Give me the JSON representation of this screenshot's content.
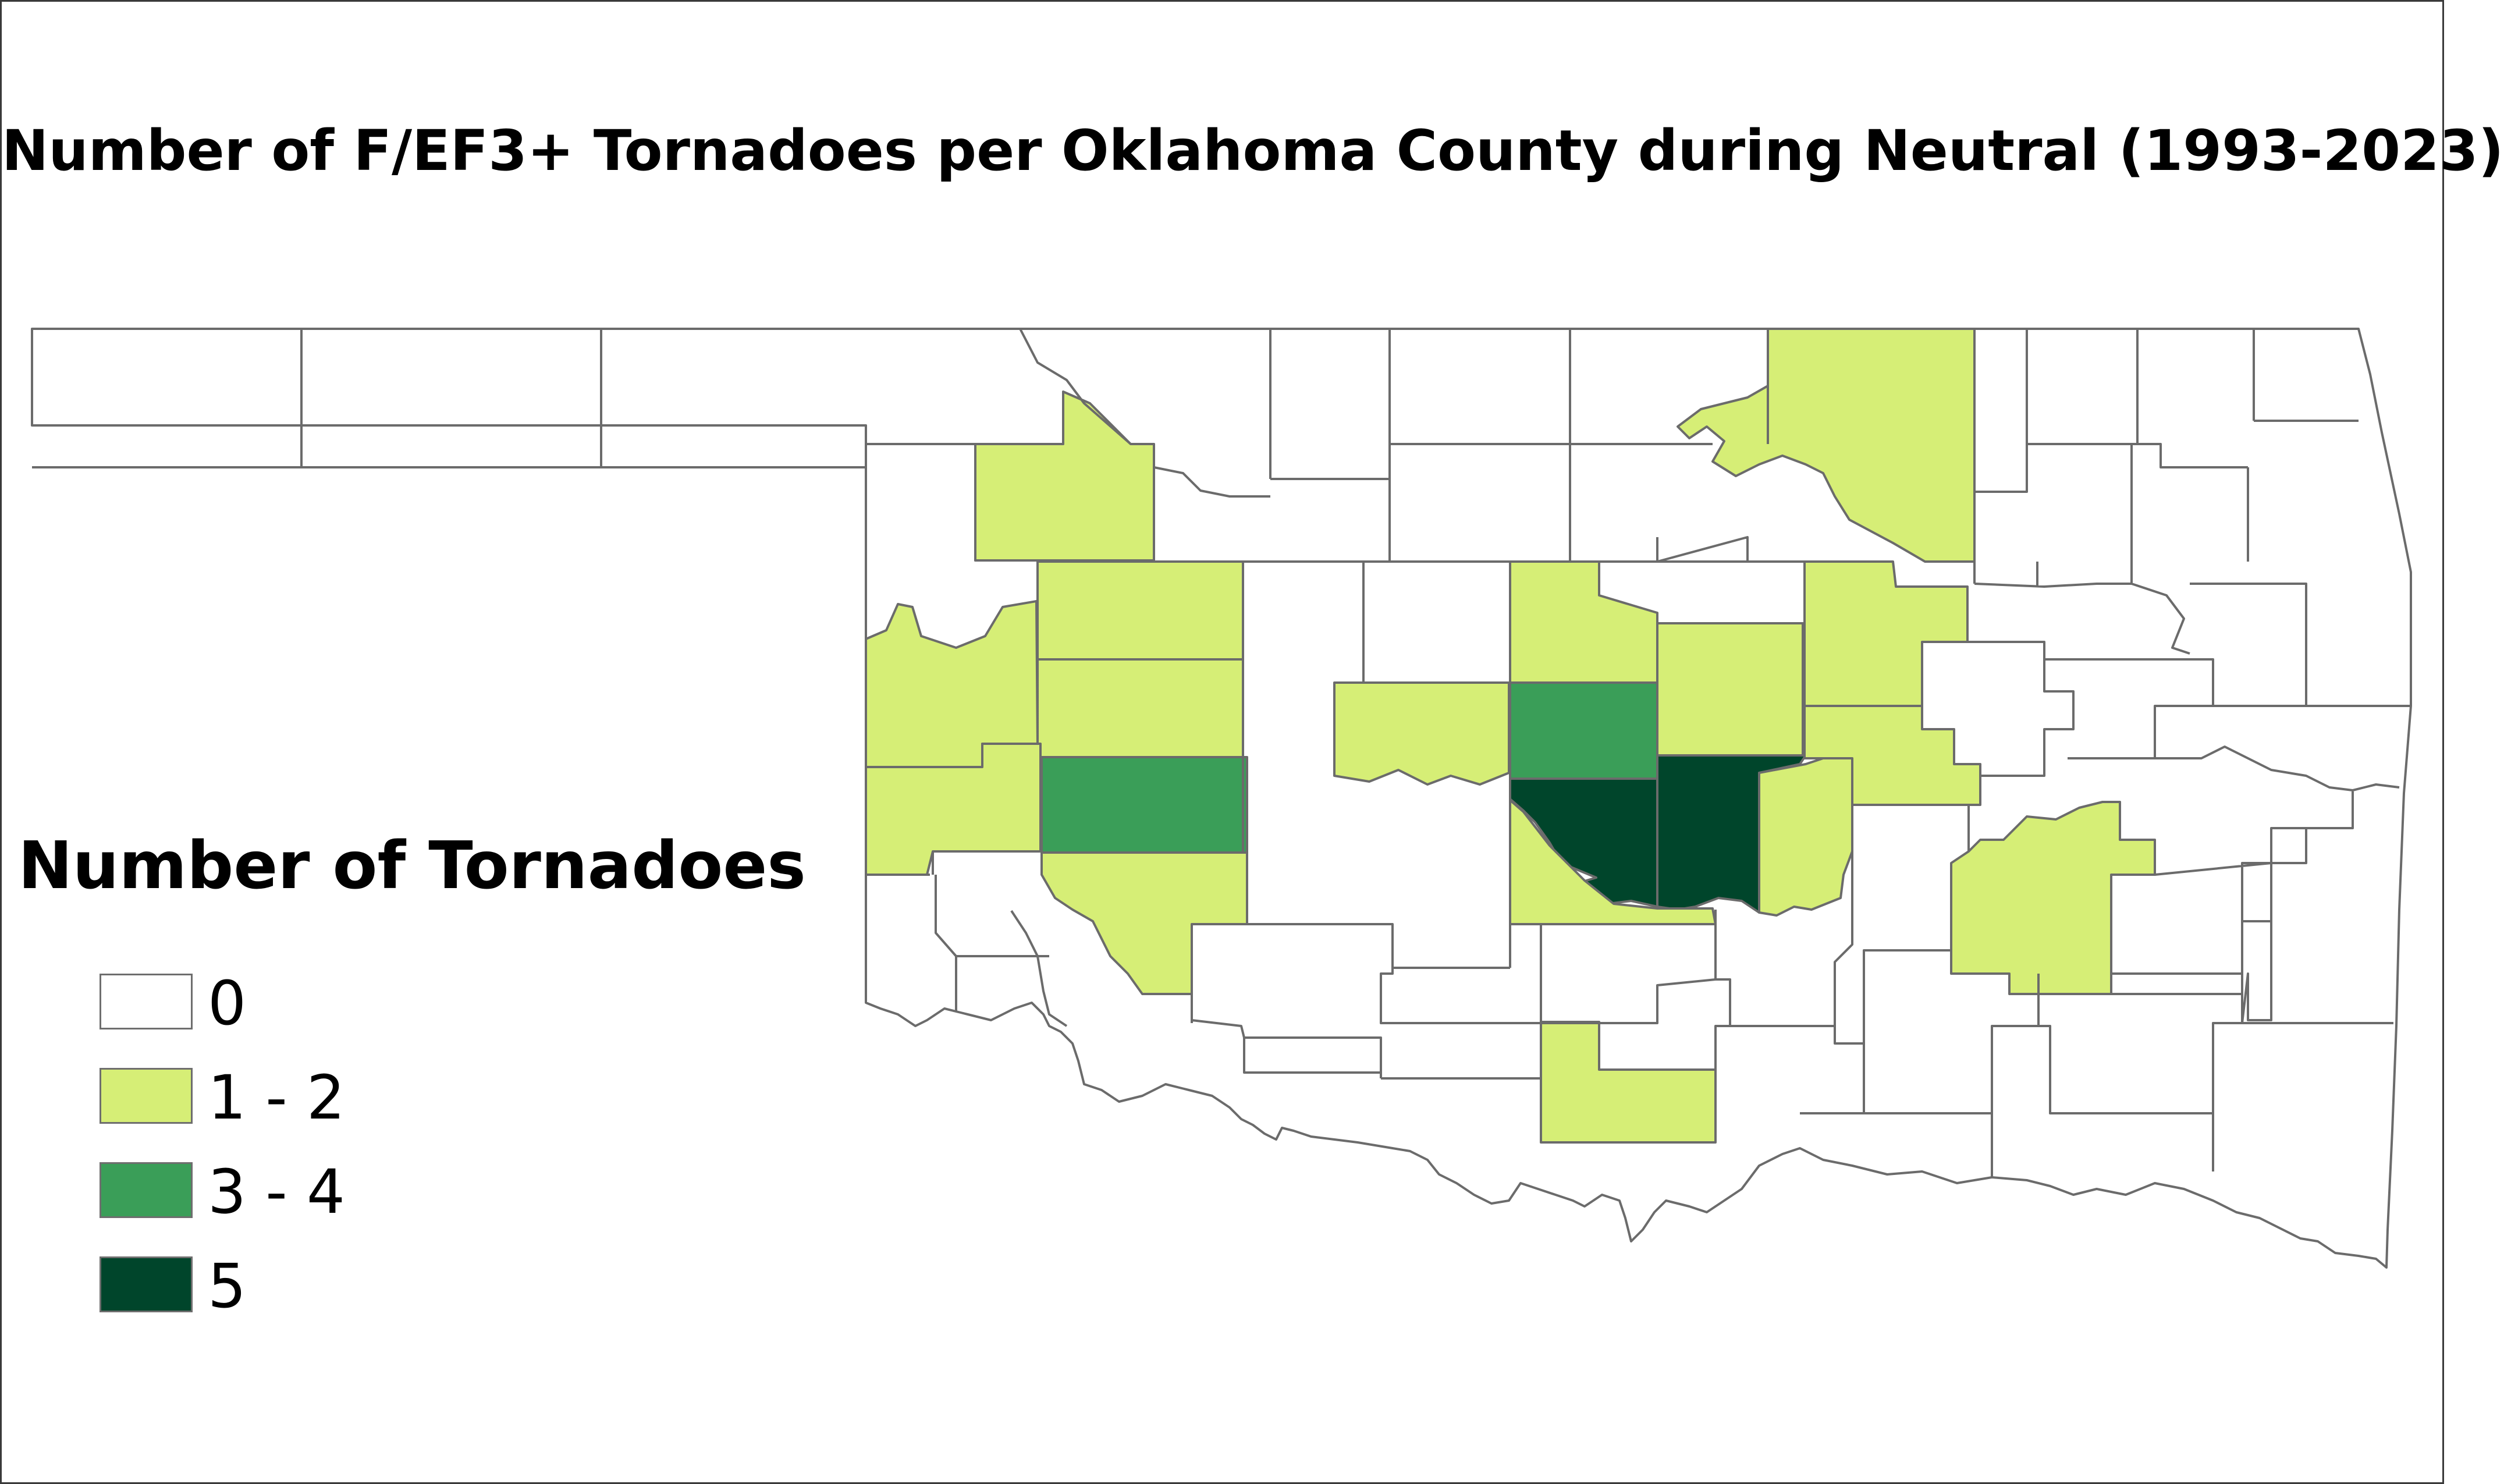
{
  "title": "Number of F/EF3+ Tornadoes per Oklahoma County during Neutral (1993-2023)",
  "legend": {
    "title": "Number of Tornadoes",
    "classes": [
      {
        "label": "0",
        "color": "#ffffff"
      },
      {
        "label": "1 - 2",
        "color": "#d6ee76"
      },
      {
        "label": "3 - 4",
        "color": "#3a9e58"
      },
      {
        "label": "5",
        "color": "#00452b"
      }
    ]
  },
  "colors": {
    "boundary": "#6b6b6b",
    "background": "#ffffff"
  }
}
